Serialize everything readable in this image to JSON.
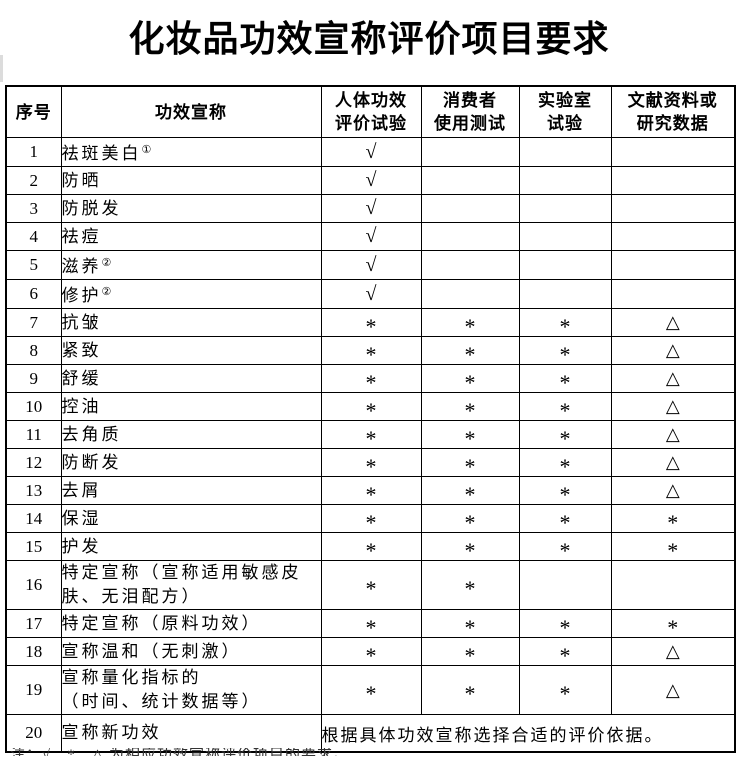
{
  "page": {
    "title": "化妆品功效宣称评价项目要求"
  },
  "table": {
    "headers": [
      {
        "lines": [
          "序号"
        ]
      },
      {
        "lines": [
          "功效宣称"
        ]
      },
      {
        "lines": [
          "人体功效",
          "评价试验"
        ]
      },
      {
        "lines": [
          "消费者",
          "使用测试"
        ]
      },
      {
        "lines": [
          "实验室",
          "试验"
        ]
      },
      {
        "lines": [
          "文献资料或",
          "研究数据"
        ]
      }
    ],
    "symbols": {
      "check": "√",
      "asterisk": "*",
      "triangle": "△"
    },
    "rows": [
      {
        "no": "1",
        "claim": "祛斑美白",
        "sup": "①",
        "cells": [
          "√",
          "",
          "",
          ""
        ]
      },
      {
        "no": "2",
        "claim": "防晒",
        "cells": [
          "√",
          "",
          "",
          ""
        ]
      },
      {
        "no": "3",
        "claim": "防脱发",
        "cells": [
          "√",
          "",
          "",
          ""
        ]
      },
      {
        "no": "4",
        "claim": "祛痘",
        "cells": [
          "√",
          "",
          "",
          ""
        ]
      },
      {
        "no": "5",
        "claim": "滋养",
        "sup": "②",
        "cells": [
          "√",
          "",
          "",
          ""
        ]
      },
      {
        "no": "6",
        "claim": "修护",
        "sup": "②",
        "cells": [
          "√",
          "",
          "",
          ""
        ]
      },
      {
        "no": "7",
        "claim": "抗皱",
        "cells": [
          "*",
          "*",
          "*",
          "△"
        ]
      },
      {
        "no": "8",
        "claim": "紧致",
        "cells": [
          "*",
          "*",
          "*",
          "△"
        ]
      },
      {
        "no": "9",
        "claim": "舒缓",
        "cells": [
          "*",
          "*",
          "*",
          "△"
        ]
      },
      {
        "no": "10",
        "claim": "控油",
        "cells": [
          "*",
          "*",
          "*",
          "△"
        ]
      },
      {
        "no": "11",
        "claim": "去角质",
        "cells": [
          "*",
          "*",
          "*",
          "△"
        ]
      },
      {
        "no": "12",
        "claim": "防断发",
        "cells": [
          "*",
          "*",
          "*",
          "△"
        ]
      },
      {
        "no": "13",
        "claim": "去屑",
        "cells": [
          "*",
          "*",
          "*",
          "△"
        ]
      },
      {
        "no": "14",
        "claim": "保湿",
        "cells": [
          "*",
          "*",
          "*",
          "*"
        ]
      },
      {
        "no": "15",
        "claim": "护发",
        "cells": [
          "*",
          "*",
          "*",
          "*"
        ]
      },
      {
        "no": "16",
        "claim": "特定宣称（宣称适用敏感皮肤、无泪配方）",
        "cells": [
          "*",
          "*",
          "",
          ""
        ]
      },
      {
        "no": "17",
        "claim": "特定宣称（原料功效）",
        "cells": [
          "*",
          "*",
          "*",
          "*"
        ]
      },
      {
        "no": "18",
        "claim": "宣称温和（无刺激）",
        "cells": [
          "*",
          "*",
          "*",
          "△"
        ]
      },
      {
        "no": "19",
        "claim_lines": [
          "宣称量化指标的",
          "（时间、统计数据等）"
        ],
        "cells": [
          "*",
          "*",
          "*",
          "△"
        ]
      },
      {
        "no": "20",
        "claim": "宣称新功效",
        "merged": "根据具体功效宣称选择合适的评价依据。"
      }
    ],
    "footnote_clipped": "注：√、*、△ 为相应功效宣称评价项目的要求。"
  }
}
